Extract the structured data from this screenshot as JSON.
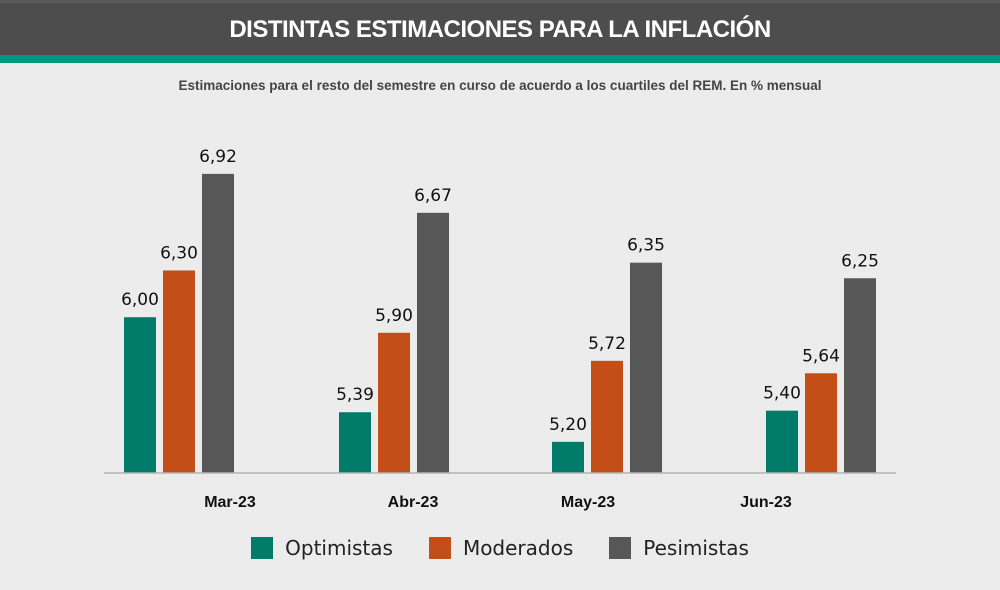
{
  "header": {
    "title": "DISTINTAS ESTIMACIONES PARA LA INFLACIÓN",
    "subtitle": "Estimaciones para el resto del semestre en curso de acuerdo a los cuartiles del REM. En % mensual"
  },
  "colors": {
    "header_bg": "#4d4d4d",
    "accent": "#00997d",
    "background": "#ececec"
  },
  "chart_data": {
    "type": "bar",
    "title": "DISTINTAS ESTIMACIONES PARA LA INFLACIÓN",
    "subtitle": "Estimaciones para el resto del semestre en curso de acuerdo a los cuartiles del REM. En % mensual",
    "xlabel": "",
    "ylabel": "",
    "categories": [
      "Mar-23",
      "Abr-23",
      "May-23",
      "Jun-23"
    ],
    "series": [
      {
        "name": "Optimistas",
        "color": "#007b6a",
        "values": [
          6.0,
          5.39,
          5.2,
          5.4
        ],
        "labels": [
          "6,00",
          "5,39",
          "5,20",
          "5,40"
        ]
      },
      {
        "name": "Moderados",
        "color": "#c44e18",
        "values": [
          6.3,
          5.9,
          5.72,
          5.64
        ],
        "labels": [
          "6,30",
          "5,90",
          "5,72",
          "5,64"
        ]
      },
      {
        "name": "Pesimistas",
        "color": "#575757",
        "values": [
          6.92,
          6.67,
          6.35,
          6.25
        ],
        "labels": [
          "6,92",
          "6,67",
          "6,35",
          "6,25"
        ]
      }
    ],
    "ylim": [
      5.0,
      7.0
    ],
    "grid": false,
    "y_axis_visible": false,
    "legend_position": "bottom"
  }
}
